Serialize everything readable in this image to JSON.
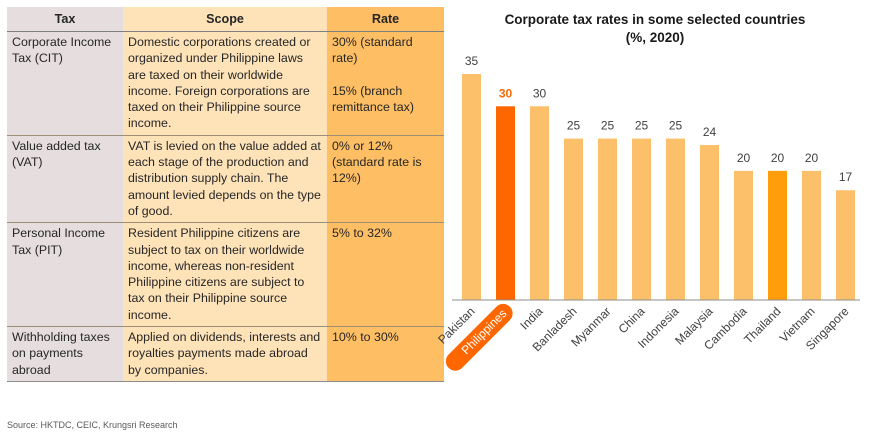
{
  "table": {
    "headers": {
      "tax": "Tax",
      "scope": "Scope",
      "rate": "Rate"
    },
    "rows": [
      {
        "tax": "Corporate Income Tax (CIT)",
        "scope": "Domestic corporations created or organized under Philippine laws are taxed on their worldwide income. Foreign corporations are taxed on their Philippine source income.",
        "rate": "30% (standard rate)\n\n15% (branch remittance tax)"
      },
      {
        "tax": "Value added tax (VAT)",
        "scope": "VAT is levied on the value added at each stage of the production and distribution supply chain. The amount levied depends on the type of good.",
        "rate": "0% or 12% (standard rate is 12%)"
      },
      {
        "tax": "Personal Income Tax (PIT)",
        "scope": "Resident Philippine citizens are subject to tax on their worldwide income, whereas non-resident Philippine citizens are subject to tax on their Philippine source income.",
        "rate": "5% to 32%"
      },
      {
        "tax": "Withholding taxes on payments abroad",
        "scope": "Applied on dividends, interests and royalties payments made abroad by companies.",
        "rate": "10% to 30%"
      }
    ]
  },
  "source": "Source: HKTDC, CEIC, Krungsri Research",
  "colors": {
    "bar_default": "#fdc06a",
    "bar_philippines": "#fe6600",
    "bar_thailand": "#ff9d0a",
    "axis": "#8c8c8c"
  },
  "chart_data": {
    "type": "bar",
    "title": "Corporate tax rates in some selected countries",
    "subtitle": "(%, 2020)",
    "xlabel": "",
    "ylabel": "",
    "ylim": [
      0,
      35
    ],
    "grid": false,
    "legend": "none",
    "categories": [
      "Pakistan",
      "Philippines",
      "India",
      "Banladesh",
      "Myanmar",
      "China",
      "Indonesia",
      "Malaysia",
      "Cambodia",
      "Thailand",
      "Vietnam",
      "Singapore"
    ],
    "values": [
      35,
      30,
      30,
      25,
      25,
      25,
      25,
      24,
      20,
      20,
      20,
      17
    ],
    "highlight": {
      "Philippines": "primary",
      "Thailand": "secondary"
    }
  }
}
